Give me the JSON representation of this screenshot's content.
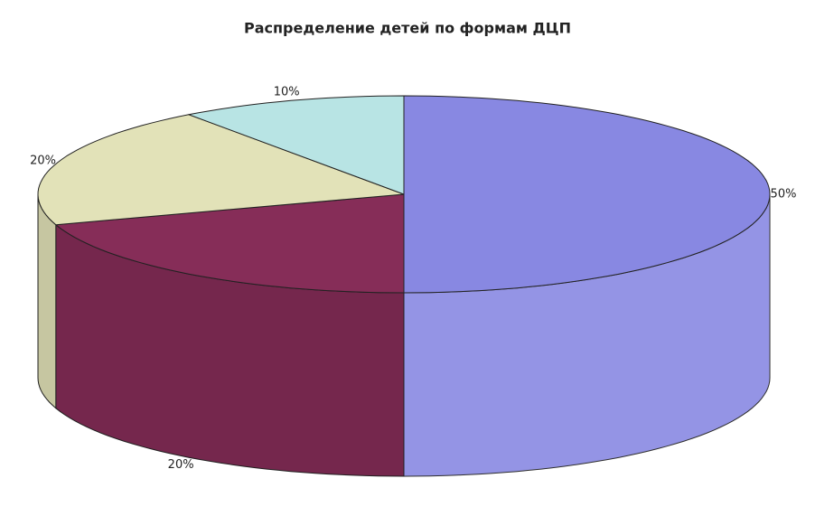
{
  "chart_data": {
    "type": "pie3d",
    "title": "Распределение детей по формам ДЦП",
    "values": [
      50,
      20,
      20,
      10
    ],
    "value_labels": [
      "50%",
      "20%",
      "20%",
      "10%"
    ],
    "colors": [
      "#8888e2",
      "#862d58",
      "#e2e2b8",
      "#b8e4e4"
    ]
  }
}
